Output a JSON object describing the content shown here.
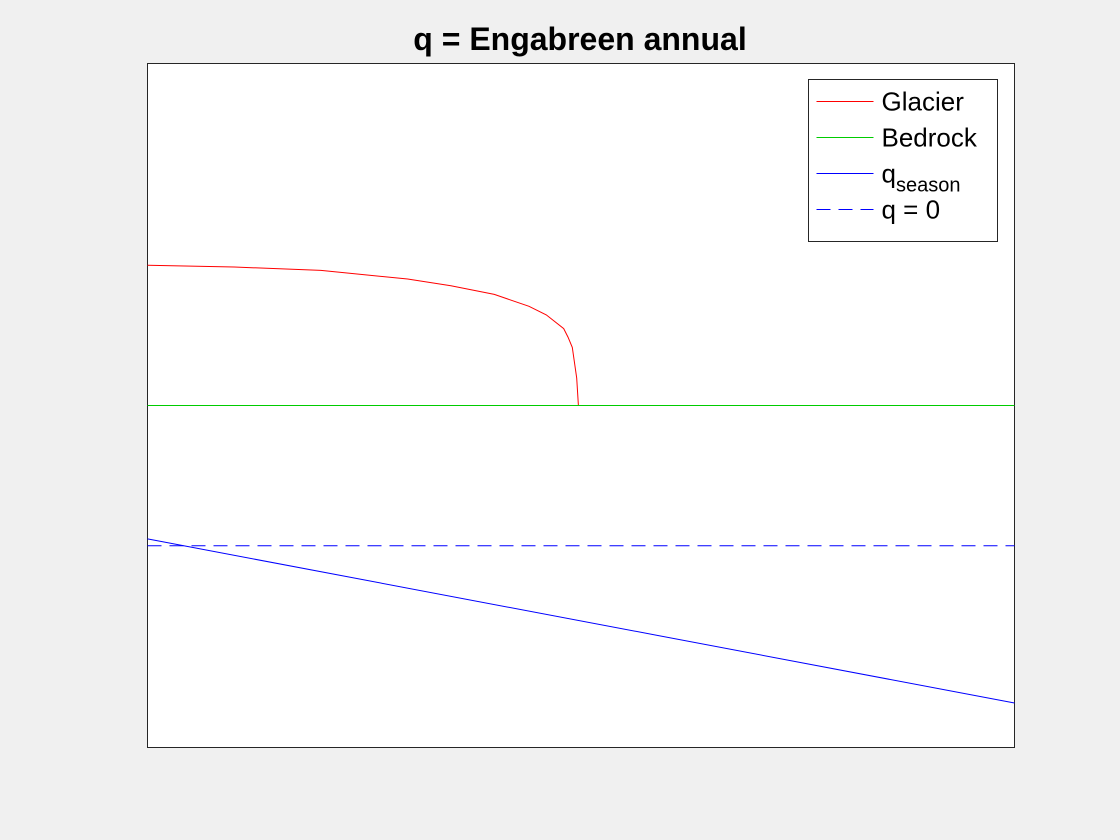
{
  "window": {
    "background": "#f0f0f0"
  },
  "chart_data": {
    "type": "line",
    "title": "q = Engabreen annual",
    "xlabel": "",
    "ylabel": "",
    "axes_visible": false,
    "grid": false,
    "box": true,
    "legend_position": "top-right",
    "xlim": [
      0,
      100
    ],
    "ylim": [
      -100,
      100
    ],
    "series": [
      {
        "name": "Glacier",
        "color": "#ff0000",
        "style": "solid",
        "x": [
          0,
          10,
          20,
          30,
          35,
          40,
          44,
          46,
          48,
          48.5,
          49,
          49.5,
          49.7
        ],
        "y": [
          41,
          40.5,
          39.5,
          37,
          35,
          32.5,
          29,
          26.5,
          22.5,
          20,
          17,
          8,
          0
        ]
      },
      {
        "name": "Bedrock",
        "color": "#00cc00",
        "style": "solid",
        "x": [
          0,
          100
        ],
        "y": [
          0,
          0
        ]
      },
      {
        "name_base": "q",
        "name_sub": "season",
        "color": "#0000ff",
        "style": "solid",
        "x": [
          0,
          100
        ],
        "y": [
          -39,
          -87
        ]
      },
      {
        "name": "q = 0",
        "color": "#0000ff",
        "style": "dashed",
        "x": [
          0,
          100
        ],
        "y": [
          -41,
          -41
        ]
      }
    ]
  }
}
